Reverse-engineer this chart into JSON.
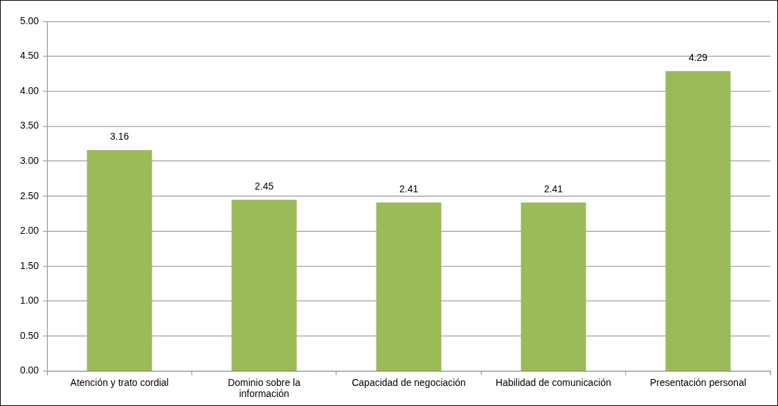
{
  "chart_data": {
    "type": "bar",
    "categories": [
      "Atención y trato cordial",
      "Dominio sobre la información",
      "Capacidad de negociación",
      "Habilidad de comunicación",
      "Presentación personal"
    ],
    "values": [
      3.16,
      2.45,
      2.41,
      2.41,
      4.29
    ],
    "color": "#9bbb59",
    "ylim": [
      0,
      5
    ],
    "yticks": [
      {
        "value": 0,
        "label": "0.00"
      },
      {
        "value": 0.5,
        "label": "0.50"
      },
      {
        "value": 1,
        "label": "1.00"
      },
      {
        "value": 1.5,
        "label": "1.50"
      },
      {
        "value": 2,
        "label": "2.00"
      },
      {
        "value": 2.5,
        "label": "2.50"
      },
      {
        "value": 3,
        "label": "3.00"
      },
      {
        "value": 3.5,
        "label": "3.50"
      },
      {
        "value": 4,
        "label": "4.00"
      },
      {
        "value": 4.5,
        "label": "4.50"
      },
      {
        "value": 5,
        "label": "5.00"
      }
    ],
    "grid": "y",
    "data_labels": true,
    "legend": false
  }
}
